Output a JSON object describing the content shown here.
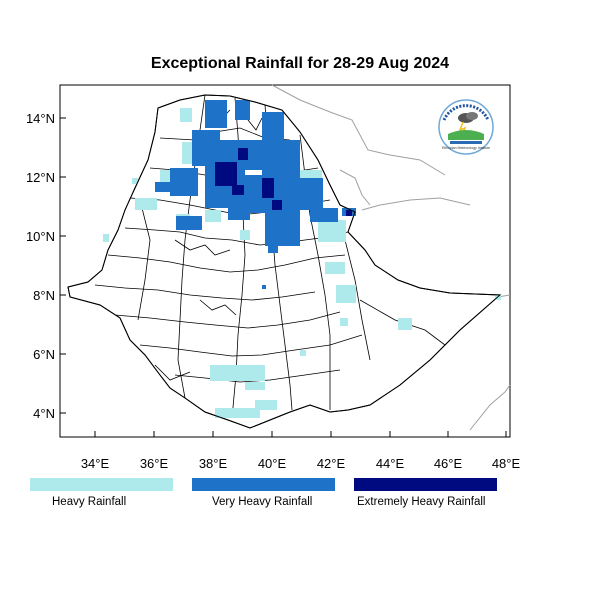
{
  "title": "Exceptional Rainfall for 28-29 Aug 2024",
  "x_ticks": [
    "34°E",
    "36°E",
    "38°E",
    "40°E",
    "42°E",
    "44°E",
    "46°E",
    "48°E"
  ],
  "y_ticks": [
    "14°N",
    "12°N",
    "10°N",
    "8°N",
    "6°N",
    "4°N"
  ],
  "legend": [
    {
      "label": "Heavy Rainfall",
      "color": "#aeeaec"
    },
    {
      "label": "Very Heavy Rainfall",
      "color": "#1e73c8"
    },
    {
      "label": "Extremely Heavy Rainfall",
      "color": "#000a80"
    }
  ],
  "colors": {
    "heavy": "#aeeaec",
    "very_heavy": "#1e73c8",
    "extreme": "#000a80",
    "border": "#000000",
    "neighbor_border": "#999999"
  },
  "logo": {
    "name": "ethiopian-meteorology-institute-logo",
    "text": "Ethiopian Meteorology Institute"
  }
}
